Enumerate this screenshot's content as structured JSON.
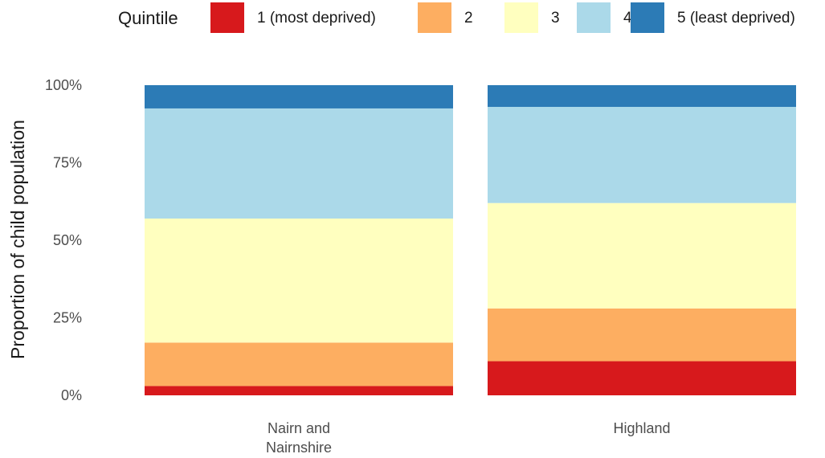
{
  "chart_data": {
    "type": "bar",
    "stacked": true,
    "title": "",
    "xlabel": "",
    "ylabel": "Proportion of child population",
    "ylim": [
      0,
      1
    ],
    "y_ticks": [
      0,
      0.25,
      0.5,
      0.75,
      1
    ],
    "y_tick_labels": [
      "0%",
      "25%",
      "50%",
      "75%",
      "100%"
    ],
    "grid": false,
    "legend_position": "top",
    "legend_title": "Quintile",
    "categories": [
      [
        "Nairn and",
        "Nairnshire"
      ],
      [
        "Highland"
      ]
    ],
    "series": [
      {
        "name": "1 (most deprived)",
        "color": "#d7191c",
        "values": [
          0.03,
          0.11
        ]
      },
      {
        "name": "2",
        "color": "#fdae61",
        "values": [
          0.14,
          0.17
        ]
      },
      {
        "name": "3",
        "color": "#ffffbf",
        "values": [
          0.4,
          0.34
        ]
      },
      {
        "name": "4",
        "color": "#abd9e9",
        "values": [
          0.355,
          0.31
        ]
      },
      {
        "name": "5 (least deprived)",
        "color": "#2c7bb6",
        "values": [
          0.075,
          0.07
        ]
      }
    ]
  }
}
